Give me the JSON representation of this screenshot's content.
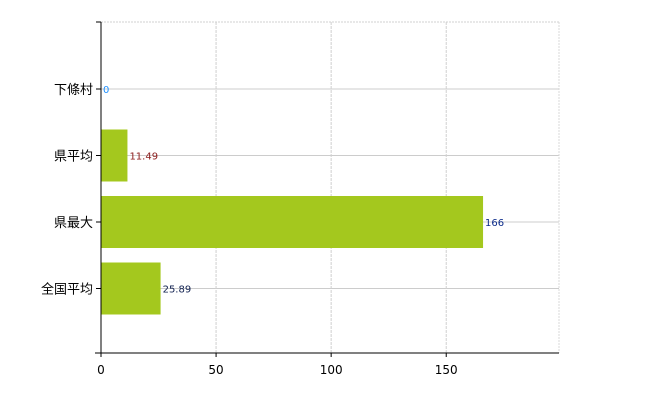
{
  "chart_data": {
    "type": "bar",
    "orientation": "horizontal",
    "categories": [
      "下條村",
      "県平均",
      "県最大",
      "全国平均"
    ],
    "values": [
      0,
      11.49,
      166,
      25.89
    ],
    "data_labels": [
      "0",
      "11.49",
      "166",
      "25.89"
    ],
    "data_label_colors": [
      "#1e90ff",
      "#8b1a1a",
      "#0a2a8a",
      "#102050"
    ],
    "title": "",
    "xlabel": "",
    "ylabel": "",
    "xlim": [
      0,
      199
    ],
    "xticks": [
      0,
      50,
      100,
      150
    ],
    "xtick_labels": [
      "0",
      "50",
      "100",
      "150"
    ],
    "grid": true,
    "bar_color": "#a4c81e"
  }
}
